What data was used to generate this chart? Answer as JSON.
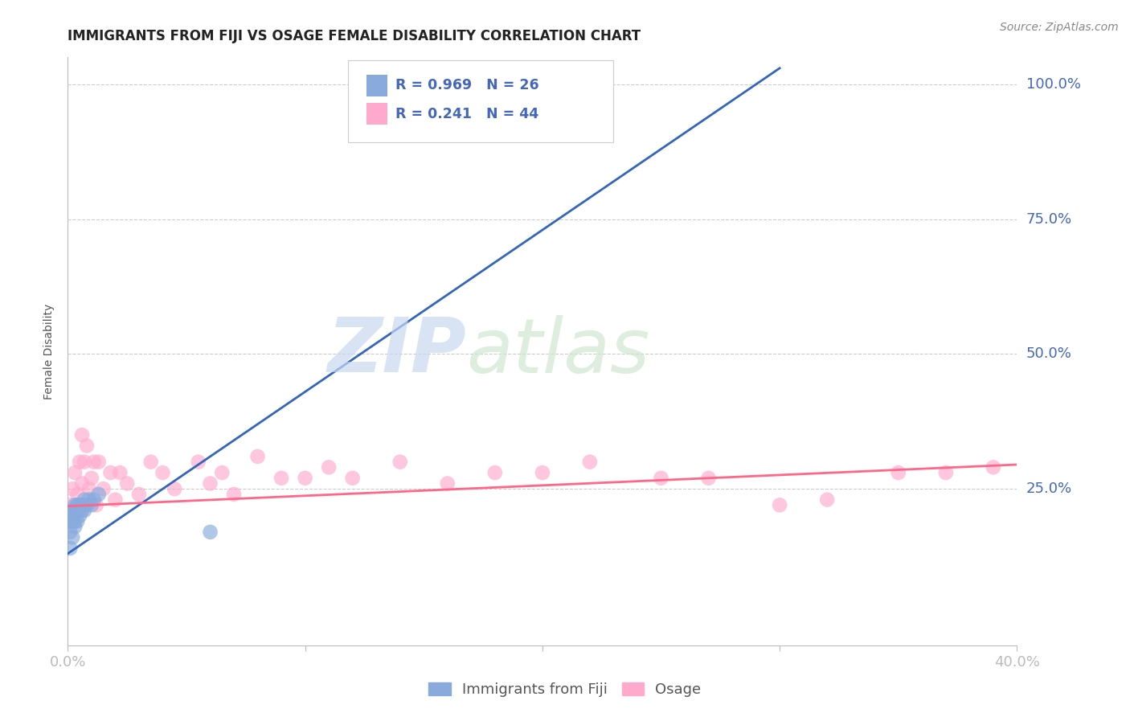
{
  "title": "IMMIGRANTS FROM FIJI VS OSAGE FEMALE DISABILITY CORRELATION CHART",
  "source_text": "Source: ZipAtlas.com",
  "ylabel": "Female Disability",
  "legend_labels": [
    "Immigrants from Fiji",
    "Osage"
  ],
  "fiji_R": 0.969,
  "fiji_N": 26,
  "osage_R": 0.241,
  "osage_N": 44,
  "x_min": 0.0,
  "x_max": 0.4,
  "y_min": -0.04,
  "y_max": 1.05,
  "x_ticks": [
    0.0,
    0.1,
    0.2,
    0.3,
    0.4
  ],
  "x_tick_labels": [
    "0.0%",
    "",
    "",
    "",
    "40.0%"
  ],
  "y_ticks": [
    0.25,
    0.5,
    0.75,
    1.0
  ],
  "y_tick_labels": [
    "25.0%",
    "50.0%",
    "75.0%",
    "100.0%"
  ],
  "fiji_color": "#88AADD",
  "osage_color": "#FFAACC",
  "fiji_line_color": "#3366BB",
  "osage_line_color": "#FF6688",
  "background_color": "#FFFFFF",
  "grid_color": "#CCCCCC",
  "axis_color": "#BBBBBB",
  "title_color": "#222222",
  "label_color": "#4466BB",
  "watermark_zip": "ZIP",
  "watermark_atlas": "atlas",
  "fiji_points_x": [
    0.001,
    0.001,
    0.001,
    0.002,
    0.002,
    0.002,
    0.002,
    0.003,
    0.003,
    0.003,
    0.003,
    0.004,
    0.004,
    0.004,
    0.005,
    0.005,
    0.006,
    0.006,
    0.007,
    0.007,
    0.008,
    0.009,
    0.01,
    0.011,
    0.013,
    0.06
  ],
  "fiji_points_y": [
    0.14,
    0.17,
    0.19,
    0.16,
    0.19,
    0.2,
    0.21,
    0.18,
    0.19,
    0.21,
    0.22,
    0.19,
    0.21,
    0.22,
    0.2,
    0.22,
    0.21,
    0.22,
    0.21,
    0.23,
    0.22,
    0.23,
    0.22,
    0.23,
    0.24,
    0.17
  ],
  "osage_points_x": [
    0.001,
    0.002,
    0.003,
    0.004,
    0.005,
    0.006,
    0.006,
    0.007,
    0.008,
    0.009,
    0.01,
    0.011,
    0.012,
    0.013,
    0.015,
    0.018,
    0.02,
    0.022,
    0.025,
    0.03,
    0.035,
    0.04,
    0.045,
    0.055,
    0.06,
    0.065,
    0.07,
    0.08,
    0.09,
    0.1,
    0.11,
    0.12,
    0.14,
    0.16,
    0.18,
    0.2,
    0.22,
    0.25,
    0.27,
    0.3,
    0.32,
    0.35,
    0.37,
    0.39
  ],
  "osage_points_y": [
    0.22,
    0.25,
    0.28,
    0.24,
    0.3,
    0.35,
    0.26,
    0.3,
    0.33,
    0.25,
    0.27,
    0.3,
    0.22,
    0.3,
    0.25,
    0.28,
    0.23,
    0.28,
    0.26,
    0.24,
    0.3,
    0.28,
    0.25,
    0.3,
    0.26,
    0.28,
    0.24,
    0.31,
    0.27,
    0.27,
    0.29,
    0.27,
    0.3,
    0.26,
    0.28,
    0.28,
    0.3,
    0.27,
    0.27,
    0.22,
    0.23,
    0.28,
    0.28,
    0.29
  ],
  "fiji_line_x0": 0.0,
  "fiji_line_y0": 0.13,
  "fiji_line_x1": 0.3,
  "fiji_line_y1": 1.03,
  "osage_line_x0": 0.0,
  "osage_line_y0": 0.218,
  "osage_line_x1": 0.4,
  "osage_line_y1": 0.295
}
